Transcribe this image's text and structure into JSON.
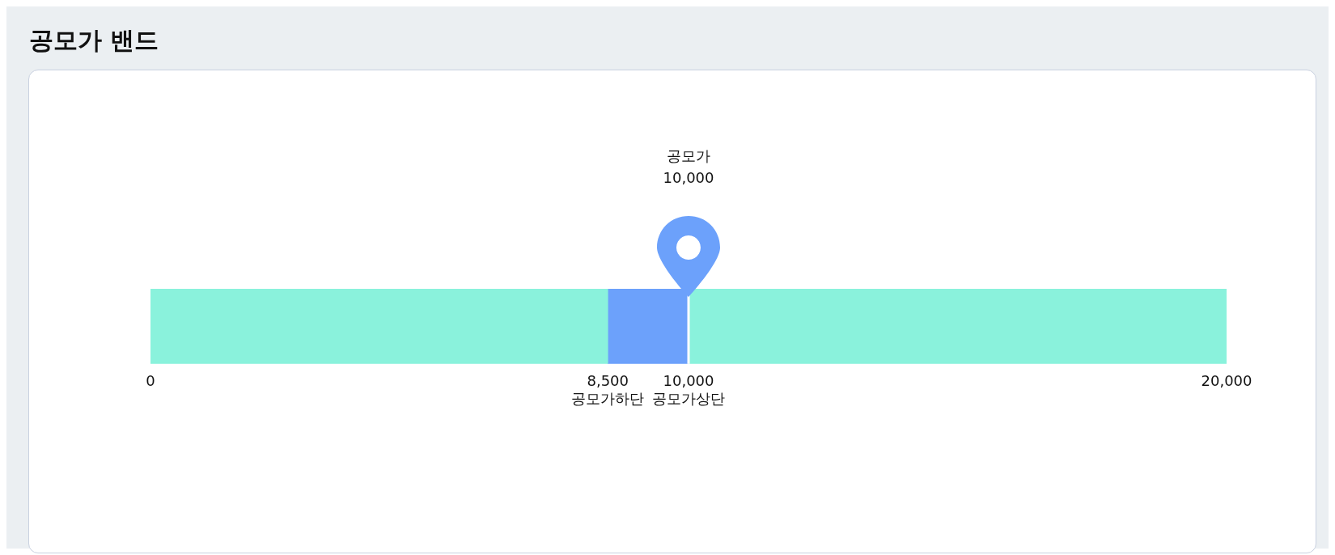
{
  "chart_data": {
    "type": "bar",
    "title": "공모가 밴드",
    "orientation": "horizontal",
    "stacked": true,
    "categories": [
      null
    ],
    "series": [
      {
        "color": "#8af2dc",
        "values": [
          8500
        ]
      },
      {
        "color": "#6ca1fb",
        "values": [
          1500
        ]
      },
      {
        "color": "#8af2dc",
        "values": [
          10000
        ]
      }
    ],
    "xlim": [
      0,
      20000
    ],
    "xticks": [
      0,
      {
        "value": 8500,
        "label": "8,500\n공모가하단"
      },
      {
        "value": 10000,
        "label": "10,000\n공모가상단"
      },
      {
        "value": 20000,
        "label": "20,000"
      }
    ],
    "ref_lines": [
      {
        "axis": "x",
        "value": 10000,
        "label": "공모가\n10,000",
        "color": "#ffffff"
      }
    ]
  }
}
